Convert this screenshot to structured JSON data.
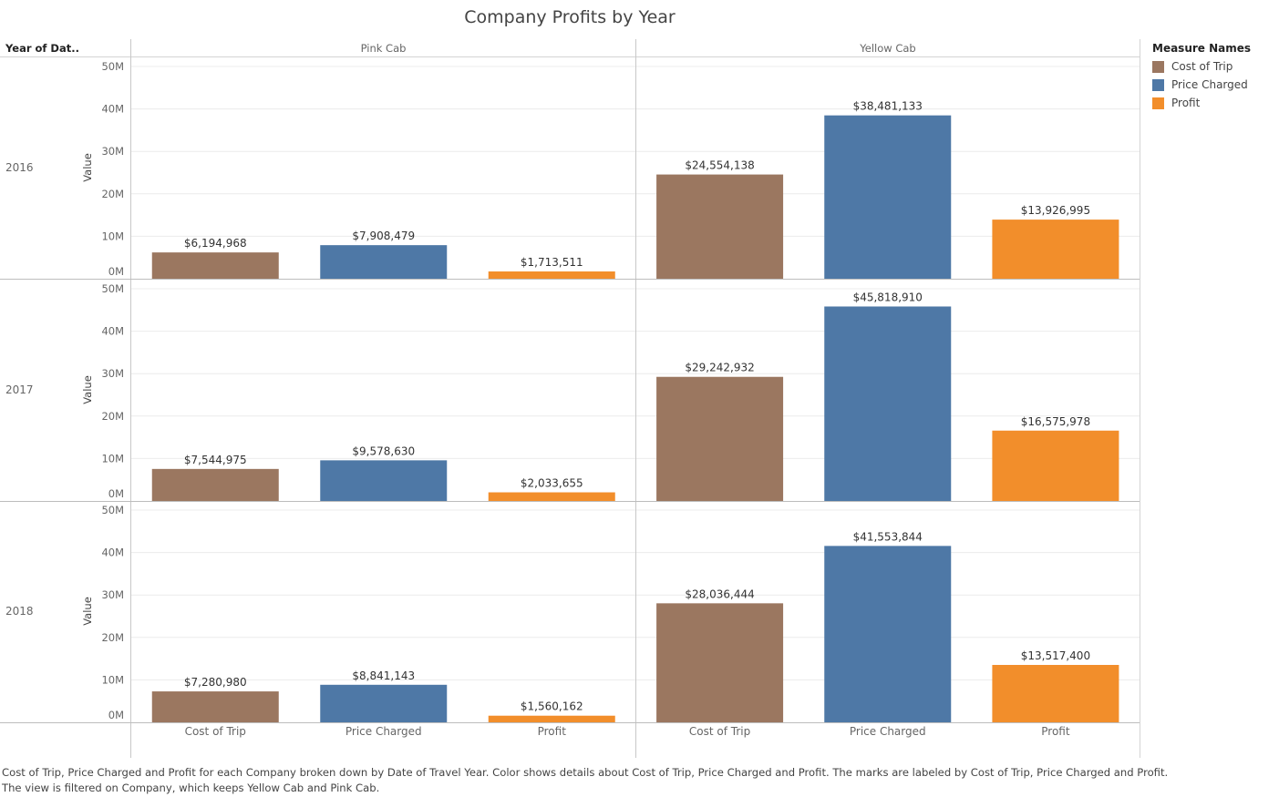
{
  "title": "Company Profits by Year",
  "row_header": "Year of Dat..",
  "legend": {
    "title": "Measure Names",
    "items": [
      {
        "label": "Cost of Trip",
        "color": "#9b7760"
      },
      {
        "label": "Price Charged",
        "color": "#4e78a6"
      },
      {
        "label": "Profit",
        "color": "#f28e2b"
      }
    ]
  },
  "chart_data": {
    "type": "bar",
    "title": "Company Profits by Year",
    "ylabel": "Value",
    "ylim": [
      0,
      50000000
    ],
    "yticks": [
      "0M",
      "10M",
      "20M",
      "30M",
      "40M",
      "50M"
    ],
    "categories": [
      "Cost of Trip",
      "Price Charged",
      "Profit"
    ],
    "companies": [
      "Pink Cab",
      "Yellow Cab"
    ],
    "years": [
      "2016",
      "2017",
      "2018"
    ],
    "panels": [
      {
        "year": "2016",
        "company": "Pink Cab",
        "values": [
          6194968,
          7908479,
          1713511
        ],
        "labels": [
          "$6,194,968",
          "$7,908,479",
          "$1,713,511"
        ]
      },
      {
        "year": "2016",
        "company": "Yellow Cab",
        "values": [
          24554138,
          38481133,
          13926995
        ],
        "labels": [
          "$24,554,138",
          "$38,481,133",
          "$13,926,995"
        ]
      },
      {
        "year": "2017",
        "company": "Pink Cab",
        "values": [
          7544975,
          9578630,
          2033655
        ],
        "labels": [
          "$7,544,975",
          "$9,578,630",
          "$2,033,655"
        ]
      },
      {
        "year": "2017",
        "company": "Yellow Cab",
        "values": [
          29242932,
          45818910,
          16575978
        ],
        "labels": [
          "$29,242,932",
          "$45,818,910",
          "$16,575,978"
        ]
      },
      {
        "year": "2018",
        "company": "Pink Cab",
        "values": [
          7280980,
          8841143,
          1560162
        ],
        "labels": [
          "$7,280,980",
          "$8,841,143",
          "$1,560,162"
        ]
      },
      {
        "year": "2018",
        "company": "Yellow Cab",
        "values": [
          28036444,
          41553844,
          13517400
        ],
        "labels": [
          "$28,036,444",
          "$41,553,844",
          "$13,517,400"
        ]
      }
    ]
  },
  "footnote": [
    "Cost of Trip, Price Charged and Profit for each Company broken down by Date of Travel Year.  Color shows details about Cost of Trip, Price Charged and Profit.  The marks are labeled by Cost of Trip, Price Charged and Profit.",
    "The view is filtered on Company, which keeps Yellow Cab and Pink Cab."
  ]
}
